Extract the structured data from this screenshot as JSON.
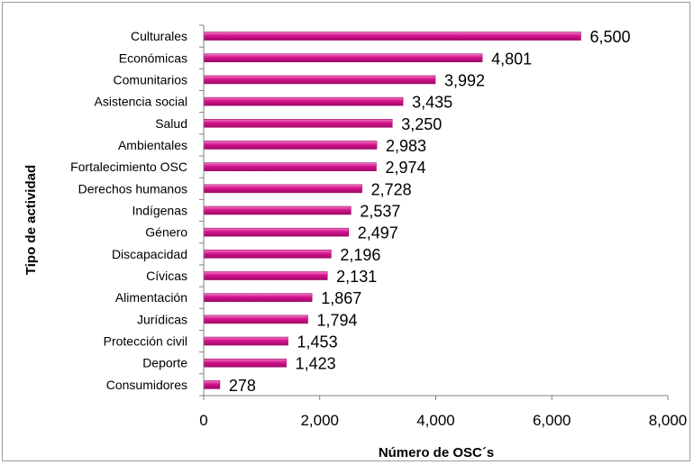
{
  "chart_data": {
    "type": "bar",
    "orientation": "horizontal",
    "title": "",
    "xlabel": "Número de OSC´s",
    "ylabel": "Tipo de actividad",
    "xlim": [
      0,
      8000
    ],
    "xticks": [
      "0",
      "2,000",
      "4,000",
      "6,000",
      "8,000"
    ],
    "grid": false,
    "legend": "none",
    "bar_color": "#d4128c",
    "categories": [
      "Culturales",
      "Económicas",
      "Comunitarios",
      "Asistencia social",
      "Salud",
      "Ambientales",
      "Fortalecimiento OSC",
      "Derechos humanos",
      "Indígenas",
      "Género",
      "Discapacidad",
      "Cívicas",
      "Alimentación",
      "Jurídicas",
      "Protección civil",
      "Deporte",
      "Consumidores"
    ],
    "values": [
      6500,
      4801,
      3992,
      3435,
      3250,
      2983,
      2974,
      2728,
      2537,
      2497,
      2196,
      2131,
      1867,
      1794,
      1453,
      1423,
      278
    ],
    "value_labels": [
      "6,500",
      "4,801",
      "3,992",
      "3,435",
      "3,250",
      "2,983",
      "2,974",
      "2,728",
      "2,537",
      "2,497",
      "2,196",
      "2,131",
      "1,867",
      "1,794",
      "1,453",
      "1,423",
      "278"
    ]
  }
}
